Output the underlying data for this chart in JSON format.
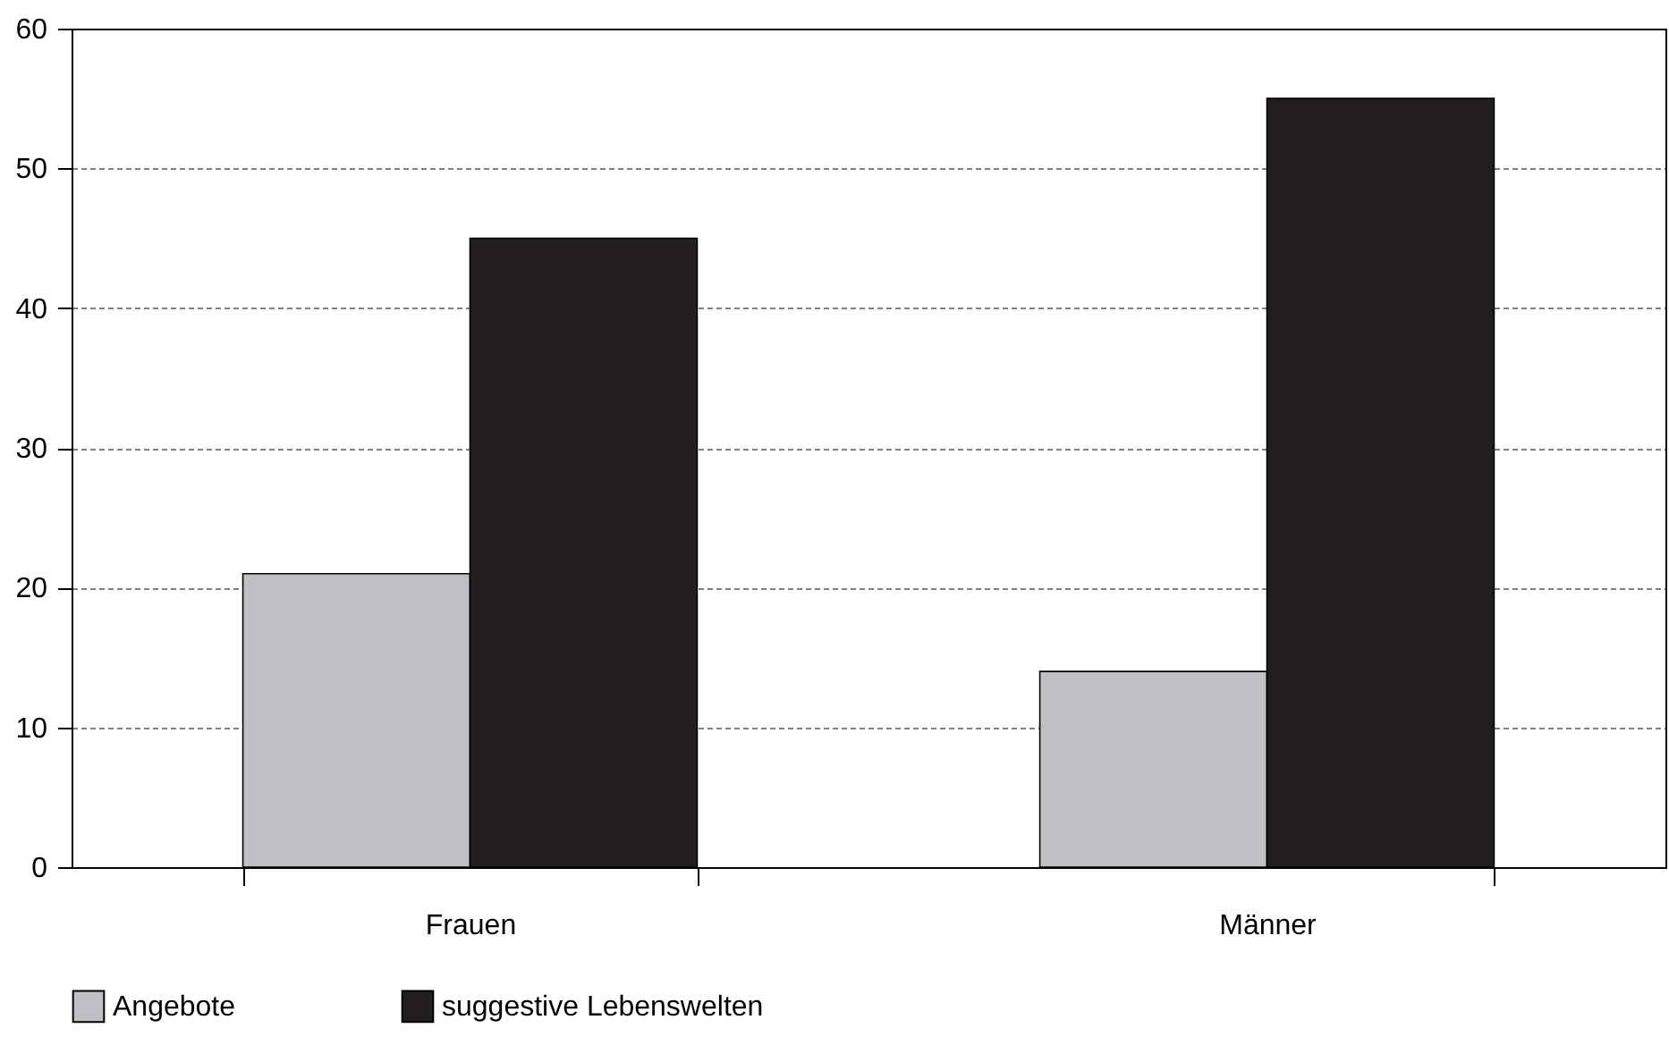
{
  "chart_data": {
    "type": "bar",
    "categories": [
      "Frauen",
      "Männer"
    ],
    "series": [
      {
        "name": "Angebote",
        "color": "#c0c0c4",
        "values": [
          21,
          14
        ]
      },
      {
        "name": "suggestive Lebenswelten",
        "color": "#231f20",
        "values": [
          45,
          55
        ]
      }
    ],
    "ylim": [
      0,
      60
    ],
    "yticks": [
      0,
      10,
      20,
      30,
      40,
      50,
      60
    ],
    "grid": "y",
    "legend": "bottom"
  }
}
